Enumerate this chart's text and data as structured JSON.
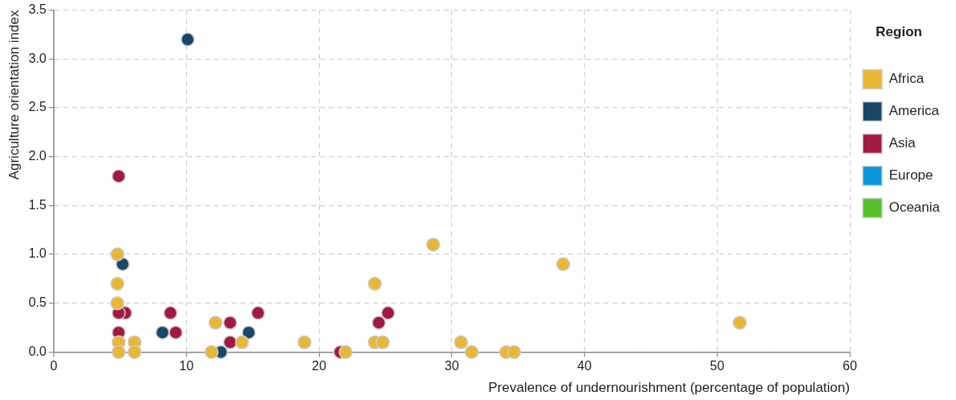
{
  "chart_data": {
    "type": "scatter",
    "xlabel": "Prevalence of undernourishment (percentage of population)",
    "ylabel": "Agriculture orientation index",
    "legend_title": "Region",
    "legend": "right",
    "grid": true,
    "marker": "circle",
    "xlim": [
      0,
      60
    ],
    "xticks": [
      0,
      10,
      20,
      30,
      40,
      50,
      60
    ],
    "ylim": [
      0,
      3.5
    ],
    "yticks": [
      {
        "value": 0,
        "label": "0.0"
      },
      {
        "value": 0.5,
        "label": "0.5"
      },
      {
        "value": 1,
        "label": "1.0"
      },
      {
        "value": 1.5,
        "label": "1.5"
      },
      {
        "value": 2,
        "label": "2.0"
      },
      {
        "value": 2.5,
        "label": "2.5"
      },
      {
        "value": 3,
        "label": "3.0"
      },
      {
        "value": 3.5,
        "label": "3.5"
      }
    ],
    "series": [
      {
        "name": "Africa",
        "color": "#e8b735",
        "x": [
          4.8,
          4.8,
          4.8,
          4.9,
          6.1,
          4.9,
          6.1,
          12.2,
          11.9,
          14.2,
          18.9,
          22.0,
          28.6,
          24.2,
          24.2,
          24.8,
          30.7,
          31.5,
          34.1,
          34.7,
          38.4,
          51.7
        ],
        "values": [
          1.0,
          0.7,
          0.5,
          0.1,
          0.1,
          0.0,
          0.0,
          0.3,
          0.0,
          0.1,
          0.1,
          0.0,
          1.1,
          0.7,
          0.1,
          0.1,
          0.1,
          0.0,
          0.0,
          0.0,
          0.9,
          0.3
        ]
      },
      {
        "name": "America",
        "color": "#1b4767",
        "x": [
          5.2,
          8.2,
          12.6,
          14.7,
          10.1
        ],
        "values": [
          0.9,
          0.2,
          0.0,
          0.2,
          3.2
        ]
      },
      {
        "name": "Asia",
        "color": "#a21942",
        "x": [
          5.4,
          4.9,
          4.9,
          8.8,
          9.2,
          13.3,
          13.3,
          15.4,
          4.9,
          21.6,
          25.2,
          24.5
        ],
        "values": [
          0.4,
          0.4,
          0.2,
          0.4,
          0.2,
          0.3,
          0.1,
          0.4,
          1.8,
          0.0,
          0.4,
          0.3
        ]
      },
      {
        "name": "Europe",
        "color": "#0a97d9"
      },
      {
        "name": "Oceania",
        "color": "#56c02b"
      }
    ]
  }
}
